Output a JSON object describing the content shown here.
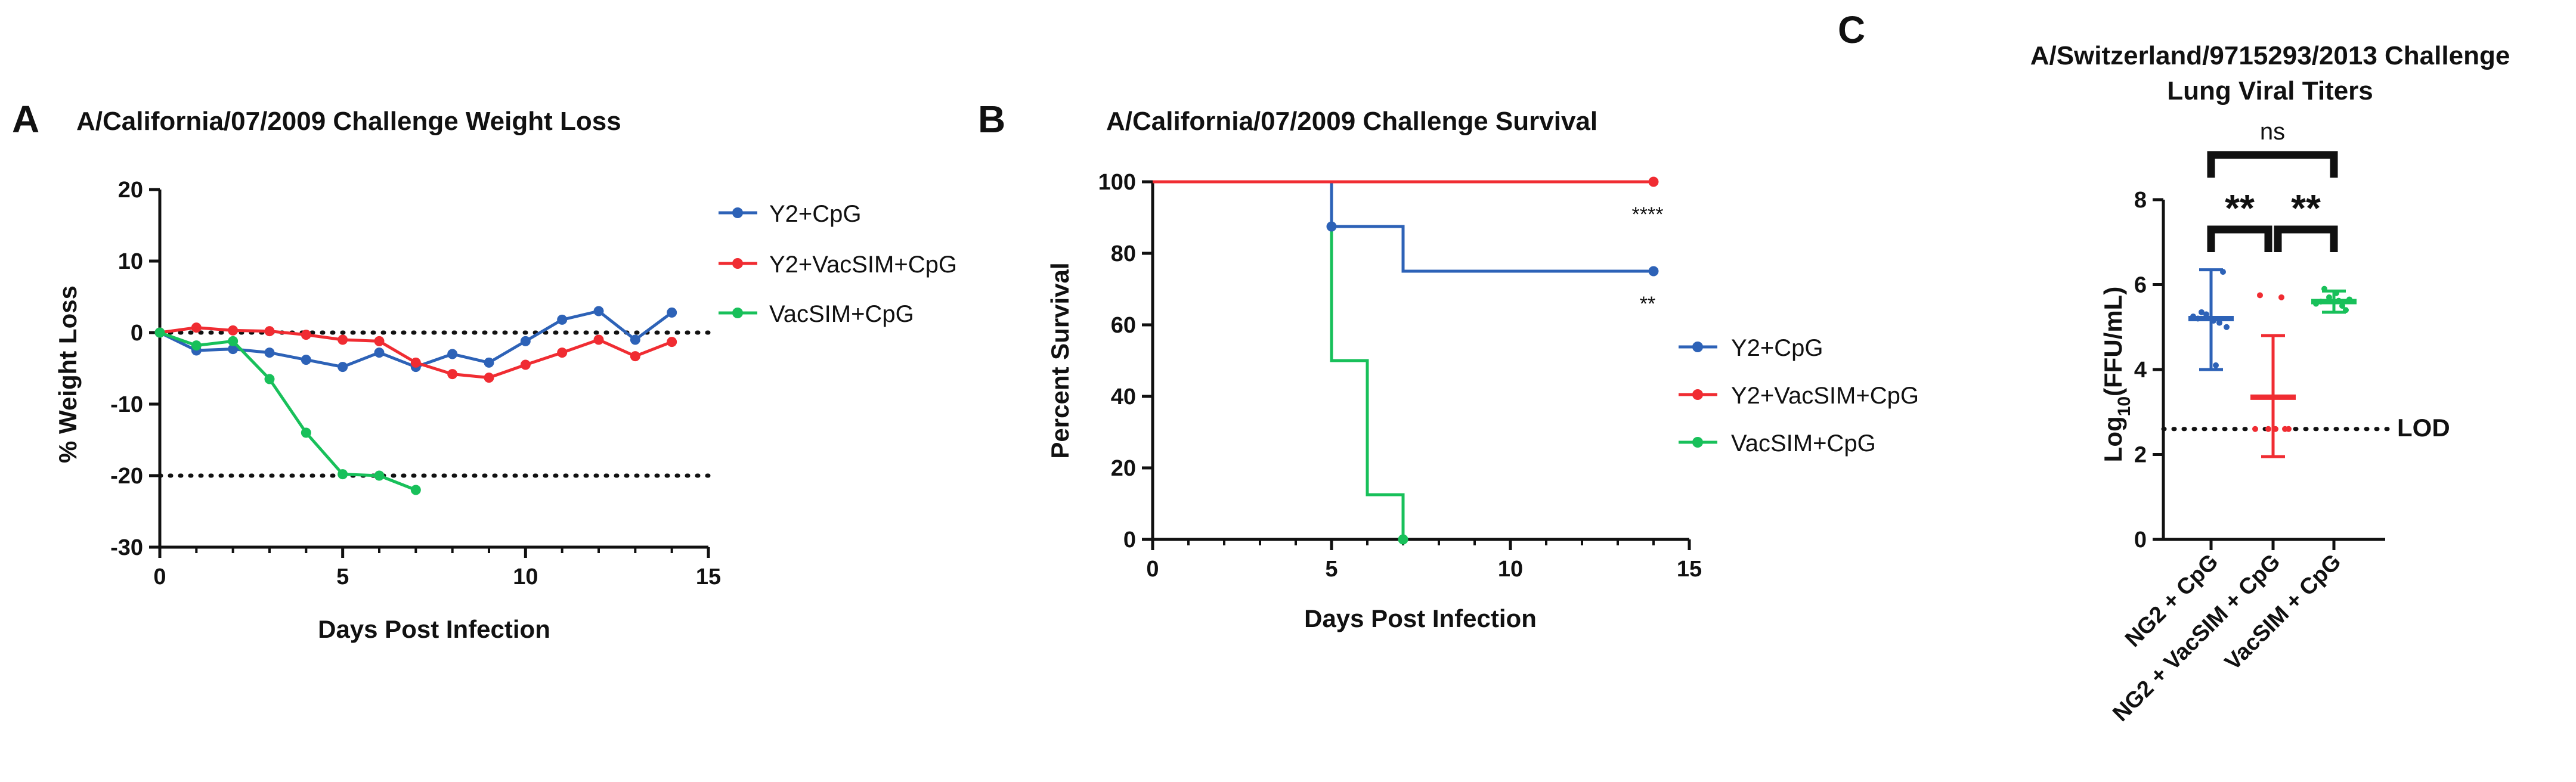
{
  "colors": {
    "blue": "#2d62b7",
    "red": "#f02c32",
    "green": "#18c05a",
    "black": "#111111"
  },
  "chart_data": [
    {
      "id": "A",
      "panel_label": "A",
      "type": "line",
      "title": "A/California/07/2009 Challenge Weight Loss",
      "xlabel": "Days Post Infection",
      "ylabel": "% Weight Loss",
      "xlim": [
        0,
        15
      ],
      "ylim": [
        -30,
        20
      ],
      "xticks": [
        0,
        5,
        10,
        15
      ],
      "yticks": [
        20,
        10,
        0,
        -10,
        -20,
        -30
      ],
      "reference_lines": [
        0,
        -20
      ],
      "series": [
        {
          "name": "Y2+CpG",
          "color": "#2d62b7",
          "x": [
            0,
            1,
            2,
            3,
            4,
            5,
            6,
            7,
            8,
            9,
            10,
            11,
            12,
            13,
            14
          ],
          "y": [
            0,
            -2.5,
            -2.3,
            -2.8,
            -3.8,
            -4.8,
            -2.8,
            -4.8,
            -3,
            -4.2,
            -1.2,
            1.8,
            3,
            -1,
            2.8
          ]
        },
        {
          "name": "Y2+VacSIM+CpG",
          "color": "#f02c32",
          "x": [
            0,
            1,
            2,
            3,
            4,
            5,
            6,
            7,
            8,
            9,
            10,
            11,
            12,
            13,
            14
          ],
          "y": [
            0,
            0.7,
            0.3,
            0.2,
            -0.3,
            -1,
            -1.2,
            -4.2,
            -5.8,
            -6.3,
            -4.5,
            -2.8,
            -1,
            -3.3,
            -1.3
          ]
        },
        {
          "name": "VacSIM+CpG",
          "color": "#18c05a",
          "x": [
            0,
            1,
            2,
            3,
            4,
            5,
            6,
            7
          ],
          "y": [
            0,
            -1.8,
            -1.2,
            -6.5,
            -14,
            -19.8,
            -20,
            -22
          ]
        }
      ]
    },
    {
      "id": "B",
      "panel_label": "B",
      "type": "line",
      "title": "A/California/07/2009 Challenge Survival",
      "xlabel": "Days Post Infection",
      "ylabel": "Percent Survival",
      "xlim": [
        0,
        15
      ],
      "ylim": [
        0,
        100
      ],
      "xticks": [
        0,
        5,
        10,
        15
      ],
      "yticks": [
        100,
        80,
        60,
        40,
        20,
        0
      ],
      "series": [
        {
          "name": "Y2+CpG",
          "color": "#2d62b7",
          "steps": [
            [
              0,
              100
            ],
            [
              5,
              87.5
            ],
            [
              7,
              75
            ],
            [
              14,
              75
            ]
          ],
          "marked_points": [
            [
              5,
              87.5
            ],
            [
              14,
              75
            ]
          ]
        },
        {
          "name": "Y2+VacSIM+CpG",
          "color": "#f02c32",
          "steps": [
            [
              0,
              100
            ],
            [
              14,
              100
            ]
          ],
          "marked_points": [
            [
              14,
              100
            ]
          ]
        },
        {
          "name": "VacSIM+CpG",
          "color": "#18c05a",
          "steps": [
            [
              0,
              100
            ],
            [
              5,
              50
            ],
            [
              6,
              12.5
            ],
            [
              7,
              0
            ]
          ],
          "marked_points": [
            [
              7,
              0
            ]
          ]
        }
      ],
      "annotations": [
        {
          "series": "Y2+VacSIM+CpG",
          "text": "****"
        },
        {
          "series": "Y2+CpG",
          "text": "**"
        }
      ]
    },
    {
      "id": "C",
      "panel_label": "C",
      "type": "scatter",
      "title_line1": "A/Switzerland/9715293/2013 Challenge",
      "title_line2": "Lung Viral Titers",
      "ylabel_main": "Log",
      "ylabel_sub": "10",
      "ylabel_unit": "(FFU/mL)",
      "ylim": [
        0,
        8
      ],
      "yticks": [
        8,
        6,
        4,
        2,
        0
      ],
      "lod": {
        "value": 2.6,
        "label": "LOD"
      },
      "categories": [
        "NG2 + CpG",
        "NG2 + VacSIM + CpG",
        "VacSIM + CpG"
      ],
      "groups": [
        {
          "name": "NG2 + CpG",
          "color": "#2d62b7",
          "mean": 5.2,
          "sd_low": 4.0,
          "sd_high": 6.35,
          "points": [
            5.2,
            5.1,
            5.3,
            5.0,
            5.25,
            5.15,
            6.3,
            5.35,
            4.1
          ]
        },
        {
          "name": "NG2 + VacSIM + CpG",
          "color": "#f02c32",
          "mean": 3.35,
          "sd_low": 1.95,
          "sd_high": 4.8,
          "points": [
            5.75,
            5.7,
            2.6,
            2.6,
            2.6,
            2.6,
            2.6
          ]
        },
        {
          "name": "VacSIM + CpG",
          "color": "#18c05a",
          "mean": 5.6,
          "sd_low": 5.35,
          "sd_high": 5.85,
          "points": [
            5.6,
            5.5,
            5.7,
            5.65,
            5.55,
            5.8,
            5.4,
            5.9,
            5.62
          ]
        }
      ],
      "significance": [
        {
          "from": 0,
          "to": 2,
          "text": "ns"
        },
        {
          "from": 0,
          "to": 1,
          "text": "**"
        },
        {
          "from": 1,
          "to": 2,
          "text": "**"
        }
      ]
    }
  ]
}
